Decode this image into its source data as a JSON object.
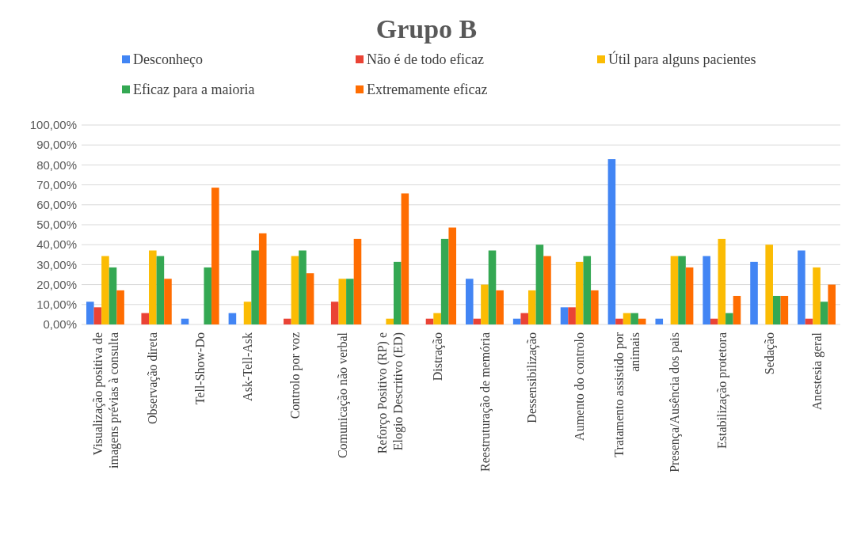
{
  "chart_data": {
    "type": "bar",
    "title": "Grupo B",
    "categories": [
      "Visualização positiva de imagens prévias à consulta",
      "Observação direta",
      "Tell-Show-Do",
      "Ask-Tell-Ask",
      "Controlo por voz",
      "Comunicação não verbal",
      "Reforço Positivo (RP) e Elogio Descritivo (ED)",
      "Distração",
      "Reestruturação de memória",
      "Dessensibilização",
      "Aumento do controlo",
      "Tratamento assistido por animais",
      "Presença/Ausência dos pais",
      "Estabilização protetora",
      "Sedação",
      "Anestesia geral"
    ],
    "series": [
      {
        "name": "Desconheço",
        "color": "#4285f4",
        "values": [
          11.4,
          0,
          2.9,
          5.7,
          0,
          0,
          0,
          0,
          22.9,
          2.9,
          8.6,
          82.9,
          2.9,
          34.3,
          31.4,
          37.1
        ]
      },
      {
        "name": "Não é de todo eficaz",
        "color": "#ea4335",
        "values": [
          8.6,
          5.7,
          0,
          0,
          2.9,
          11.4,
          0,
          2.9,
          2.9,
          5.7,
          8.6,
          2.9,
          0,
          2.9,
          0,
          2.9
        ]
      },
      {
        "name": "Útil para alguns pacientes",
        "color": "#fbbc04",
        "values": [
          34.3,
          37.1,
          0,
          11.4,
          34.3,
          22.9,
          2.9,
          5.7,
          20,
          17.1,
          31.4,
          5.7,
          34.3,
          42.9,
          40,
          28.6
        ]
      },
      {
        "name": "Eficaz para a maioria",
        "color": "#34a853",
        "values": [
          28.6,
          34.3,
          28.6,
          37.1,
          37.1,
          22.9,
          31.4,
          42.9,
          37.1,
          40,
          34.3,
          5.7,
          34.3,
          5.7,
          14.3,
          11.4
        ]
      },
      {
        "name": "Extremamente eficaz",
        "color": "#ff6d01",
        "values": [
          17.1,
          22.9,
          68.6,
          45.7,
          25.7,
          42.9,
          65.7,
          48.6,
          17.1,
          34.3,
          17.1,
          2.9,
          28.6,
          14.3,
          14.3,
          20
        ]
      }
    ],
    "ylim": [
      0,
      100
    ],
    "yticks": [
      {
        "value": 0,
        "label": "0,00%"
      },
      {
        "value": 10,
        "label": "10,00%"
      },
      {
        "value": 20,
        "label": "20,00%"
      },
      {
        "value": 30,
        "label": "30,00%"
      },
      {
        "value": 40,
        "label": "40,00%"
      },
      {
        "value": 50,
        "label": "50,00%"
      },
      {
        "value": 60,
        "label": "60,00%"
      },
      {
        "value": 70,
        "label": "70,00%"
      },
      {
        "value": 80,
        "label": "80,00%"
      },
      {
        "value": 90,
        "label": "90,00%"
      },
      {
        "value": 100,
        "label": "100,00%"
      }
    ],
    "grid": "y",
    "legend": "top"
  }
}
